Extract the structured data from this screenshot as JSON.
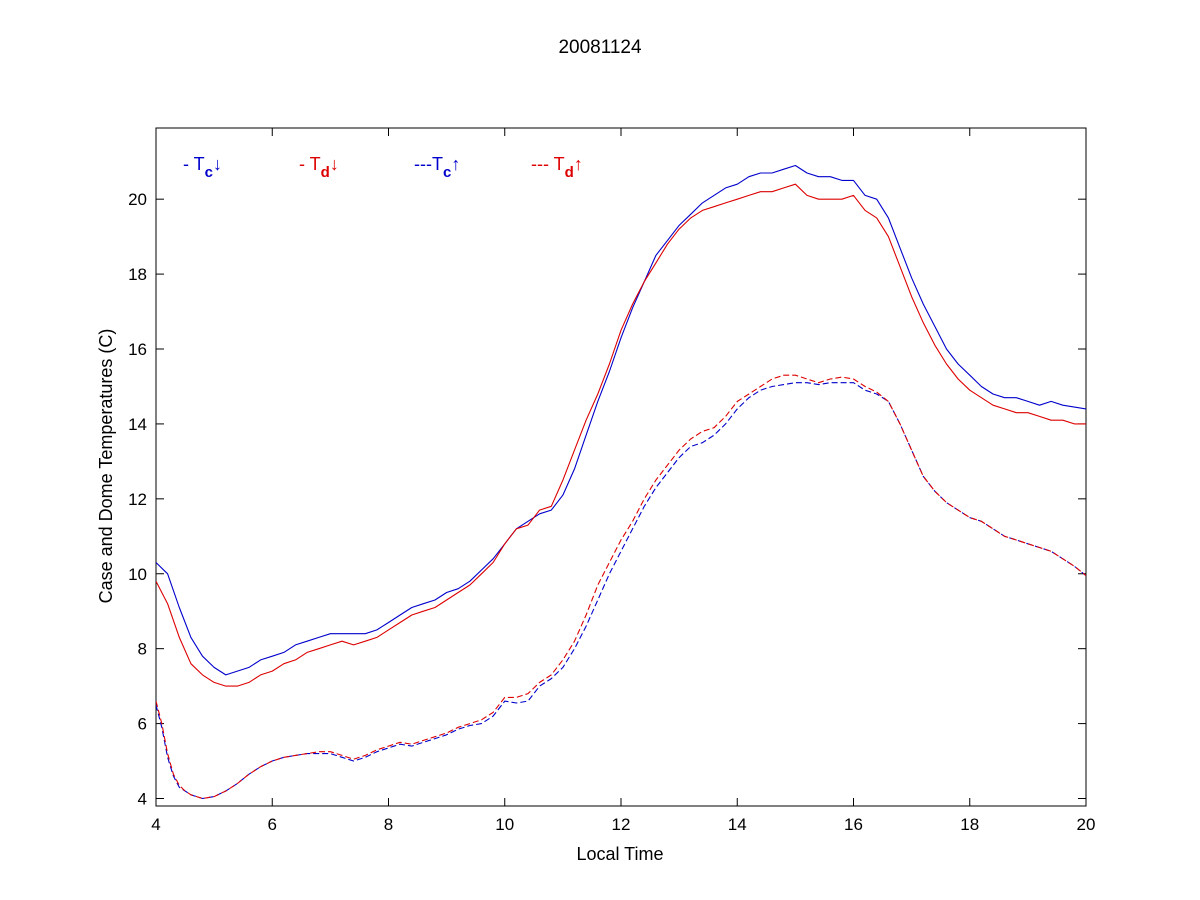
{
  "chart_data": {
    "type": "line",
    "title": "20081124",
    "xlabel": "Local Time",
    "ylabel": "Case and Dome Temperatures (C)",
    "xlim": [
      4,
      20
    ],
    "ylim": [
      3.8,
      21.9
    ],
    "xticks": [
      4,
      6,
      8,
      10,
      12,
      14,
      16,
      18,
      20
    ],
    "yticks": [
      4,
      6,
      8,
      10,
      12,
      14,
      16,
      18,
      20
    ],
    "grid": false,
    "legend_position": "top-left, inside",
    "series": [
      {
        "name": "T_c down",
        "legend_prefix": "- T",
        "legend_sub": "c",
        "legend_arrow": "↓",
        "color": "#0000cc",
        "dash": "solid",
        "x": [
          4,
          4.2,
          4.4,
          4.6,
          4.8,
          5,
          5.2,
          5.4,
          5.6,
          5.8,
          6,
          6.2,
          6.4,
          6.6,
          6.8,
          7,
          7.2,
          7.4,
          7.6,
          7.8,
          8,
          8.2,
          8.4,
          8.6,
          8.8,
          9,
          9.2,
          9.4,
          9.6,
          9.8,
          10,
          10.2,
          10.4,
          10.6,
          10.8,
          11,
          11.2,
          11.4,
          11.6,
          11.8,
          12,
          12.2,
          12.4,
          12.6,
          12.8,
          13,
          13.2,
          13.4,
          13.6,
          13.8,
          14,
          14.2,
          14.4,
          14.6,
          14.8,
          15,
          15.2,
          15.4,
          15.6,
          15.8,
          16,
          16.2,
          16.4,
          16.6,
          16.8,
          17,
          17.2,
          17.4,
          17.6,
          17.8,
          18,
          18.2,
          18.4,
          18.6,
          18.8,
          19,
          19.2,
          19.4,
          19.6,
          19.8,
          20
        ],
        "y": [
          10.3,
          10.0,
          9.1,
          8.3,
          7.8,
          7.5,
          7.3,
          7.4,
          7.5,
          7.7,
          7.8,
          7.9,
          8.1,
          8.2,
          8.3,
          8.4,
          8.4,
          8.4,
          8.4,
          8.5,
          8.7,
          8.9,
          9.1,
          9.2,
          9.3,
          9.5,
          9.6,
          9.8,
          10.1,
          10.4,
          10.8,
          11.2,
          11.4,
          11.6,
          11.7,
          12.1,
          12.8,
          13.7,
          14.6,
          15.4,
          16.3,
          17.1,
          17.8,
          18.5,
          18.9,
          19.3,
          19.6,
          19.9,
          20.1,
          20.3,
          20.4,
          20.6,
          20.7,
          20.7,
          20.8,
          20.9,
          20.7,
          20.6,
          20.6,
          20.5,
          20.5,
          20.1,
          20.0,
          19.5,
          18.7,
          17.9,
          17.2,
          16.6,
          16.0,
          15.6,
          15.3,
          15.0,
          14.8,
          14.7,
          14.7,
          14.6,
          14.5,
          14.6,
          14.5,
          14.45,
          14.4
        ]
      },
      {
        "name": "T_d down",
        "legend_prefix": "- T",
        "legend_sub": "d",
        "legend_arrow": "↓",
        "color": "#dd0000",
        "dash": "solid",
        "x": [
          4,
          4.2,
          4.4,
          4.6,
          4.8,
          5,
          5.2,
          5.4,
          5.6,
          5.8,
          6,
          6.2,
          6.4,
          6.6,
          6.8,
          7,
          7.2,
          7.4,
          7.6,
          7.8,
          8,
          8.2,
          8.4,
          8.6,
          8.8,
          9,
          9.2,
          9.4,
          9.6,
          9.8,
          10,
          10.2,
          10.4,
          10.6,
          10.8,
          11,
          11.2,
          11.4,
          11.6,
          11.8,
          12,
          12.2,
          12.4,
          12.6,
          12.8,
          13,
          13.2,
          13.4,
          13.6,
          13.8,
          14,
          14.2,
          14.4,
          14.6,
          14.8,
          15,
          15.2,
          15.4,
          15.6,
          15.8,
          16,
          16.2,
          16.4,
          16.6,
          16.8,
          17,
          17.2,
          17.4,
          17.6,
          17.8,
          18,
          18.2,
          18.4,
          18.6,
          18.8,
          19,
          19.2,
          19.4,
          19.6,
          19.8,
          20
        ],
        "y": [
          9.8,
          9.2,
          8.3,
          7.6,
          7.3,
          7.1,
          7.0,
          7.0,
          7.1,
          7.3,
          7.4,
          7.6,
          7.7,
          7.9,
          8.0,
          8.1,
          8.2,
          8.1,
          8.2,
          8.3,
          8.5,
          8.7,
          8.9,
          9.0,
          9.1,
          9.3,
          9.5,
          9.7,
          10.0,
          10.3,
          10.8,
          11.2,
          11.3,
          11.7,
          11.8,
          12.5,
          13.3,
          14.1,
          14.8,
          15.6,
          16.5,
          17.2,
          17.8,
          18.3,
          18.8,
          19.2,
          19.5,
          19.7,
          19.8,
          19.9,
          20.0,
          20.1,
          20.2,
          20.2,
          20.3,
          20.4,
          20.1,
          20.0,
          20.0,
          20.0,
          20.1,
          19.7,
          19.5,
          19.0,
          18.2,
          17.4,
          16.7,
          16.1,
          15.6,
          15.2,
          14.9,
          14.7,
          14.5,
          14.4,
          14.3,
          14.3,
          14.2,
          14.1,
          14.1,
          14.0,
          14.0
        ]
      },
      {
        "name": "T_c up",
        "legend_prefix": "---T",
        "legend_sub": "c",
        "legend_arrow": "↑",
        "color": "#0000cc",
        "dash": "dashed",
        "x": [
          4,
          4.1,
          4.2,
          4.3,
          4.4,
          4.5,
          4.6,
          4.8,
          5,
          5.2,
          5.4,
          5.6,
          5.8,
          6,
          6.2,
          6.4,
          6.6,
          6.8,
          7,
          7.2,
          7.4,
          7.6,
          7.8,
          8,
          8.2,
          8.4,
          8.6,
          8.8,
          9,
          9.2,
          9.4,
          9.6,
          9.8,
          10,
          10.2,
          10.4,
          10.6,
          10.8,
          11,
          11.2,
          11.4,
          11.6,
          11.8,
          12,
          12.2,
          12.4,
          12.6,
          12.8,
          13,
          13.2,
          13.4,
          13.6,
          13.8,
          14,
          14.2,
          14.4,
          14.6,
          14.8,
          15,
          15.2,
          15.4,
          15.6,
          15.8,
          16,
          16.2,
          16.4,
          16.6,
          16.8,
          17,
          17.2,
          17.4,
          17.6,
          17.8,
          18,
          18.2,
          18.4,
          18.6,
          18.8,
          19,
          19.2,
          19.4,
          19.6,
          19.8,
          20
        ],
        "y": [
          6.5,
          5.9,
          5.1,
          4.6,
          4.3,
          4.2,
          4.1,
          4.0,
          4.05,
          4.2,
          4.4,
          4.65,
          4.85,
          5.0,
          5.1,
          5.15,
          5.2,
          5.2,
          5.2,
          5.1,
          5.0,
          5.1,
          5.25,
          5.35,
          5.45,
          5.4,
          5.5,
          5.6,
          5.7,
          5.85,
          5.95,
          6.0,
          6.2,
          6.6,
          6.55,
          6.6,
          7.0,
          7.2,
          7.5,
          8.0,
          8.6,
          9.3,
          10.0,
          10.6,
          11.2,
          11.8,
          12.3,
          12.7,
          13.1,
          13.4,
          13.5,
          13.7,
          14.0,
          14.4,
          14.7,
          14.9,
          15.0,
          15.05,
          15.1,
          15.1,
          15.05,
          15.1,
          15.1,
          15.1,
          14.9,
          14.8,
          14.6,
          14.0,
          13.3,
          12.6,
          12.2,
          11.9,
          11.7,
          11.5,
          11.4,
          11.2,
          11.0,
          10.9,
          10.8,
          10.7,
          10.6,
          10.4,
          10.2,
          9.95
        ]
      },
      {
        "name": "T_d up",
        "legend_prefix": "--- T",
        "legend_sub": "d",
        "legend_arrow": "↑",
        "color": "#dd0000",
        "dash": "dashed",
        "x": [
          4,
          4.1,
          4.2,
          4.3,
          4.4,
          4.5,
          4.6,
          4.8,
          5,
          5.2,
          5.4,
          5.6,
          5.8,
          6,
          6.2,
          6.4,
          6.6,
          6.8,
          7,
          7.2,
          7.4,
          7.6,
          7.8,
          8,
          8.2,
          8.4,
          8.6,
          8.8,
          9,
          9.2,
          9.4,
          9.6,
          9.8,
          10,
          10.2,
          10.4,
          10.6,
          10.8,
          11,
          11.2,
          11.4,
          11.6,
          11.8,
          12,
          12.2,
          12.4,
          12.6,
          12.8,
          13,
          13.2,
          13.4,
          13.6,
          13.8,
          14,
          14.2,
          14.4,
          14.6,
          14.8,
          15,
          15.2,
          15.4,
          15.6,
          15.8,
          16,
          16.2,
          16.4,
          16.6,
          16.8,
          17,
          17.2,
          17.4,
          17.6,
          17.8,
          18,
          18.2,
          18.4,
          18.6,
          18.8,
          19,
          19.2,
          19.4,
          19.6,
          19.8,
          20
        ],
        "y": [
          6.6,
          6.0,
          5.2,
          4.65,
          4.35,
          4.2,
          4.1,
          4.0,
          4.05,
          4.2,
          4.4,
          4.65,
          4.85,
          5.0,
          5.1,
          5.15,
          5.2,
          5.25,
          5.25,
          5.15,
          5.05,
          5.15,
          5.3,
          5.4,
          5.5,
          5.45,
          5.55,
          5.65,
          5.75,
          5.9,
          6.0,
          6.1,
          6.3,
          6.7,
          6.7,
          6.8,
          7.1,
          7.3,
          7.7,
          8.2,
          8.9,
          9.7,
          10.3,
          10.9,
          11.4,
          12.0,
          12.5,
          12.9,
          13.3,
          13.6,
          13.8,
          13.9,
          14.2,
          14.6,
          14.8,
          15.0,
          15.2,
          15.3,
          15.3,
          15.2,
          15.1,
          15.2,
          15.25,
          15.2,
          15.0,
          14.85,
          14.6,
          14.0,
          13.3,
          12.6,
          12.2,
          11.9,
          11.7,
          11.5,
          11.4,
          11.2,
          11.0,
          10.9,
          10.8,
          10.7,
          10.6,
          10.4,
          10.2,
          9.95
        ]
      }
    ]
  }
}
